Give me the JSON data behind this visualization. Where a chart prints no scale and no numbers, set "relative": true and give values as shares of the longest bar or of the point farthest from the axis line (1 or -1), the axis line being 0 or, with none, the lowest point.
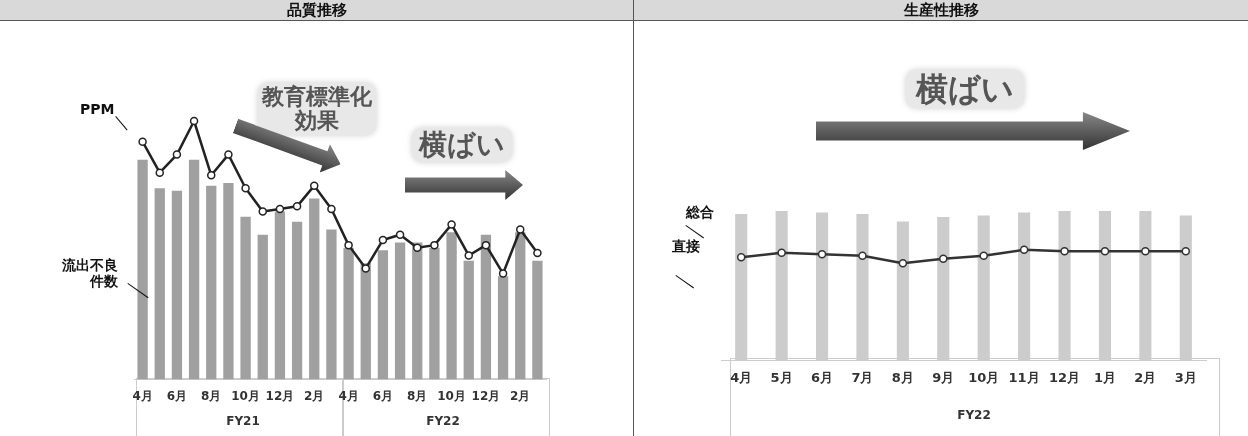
{
  "chart_data": [
    {
      "type": "bar",
      "title": "品質推移",
      "relative": true,
      "legend": false,
      "grid": false,
      "marker": "circle",
      "categories": [
        "4月",
        null,
        "6月",
        null,
        "8月",
        null,
        "10月",
        null,
        "12月",
        null,
        "2月",
        null,
        "4月",
        null,
        "6月",
        null,
        "8月",
        null,
        "10月",
        null,
        "12月",
        null,
        "2月",
        null
      ],
      "series": [
        {
          "name": "流出不良件数",
          "color": "#a0a0a0",
          "values": [
            0.85,
            0.74,
            0.73,
            0.85,
            0.75,
            0.76,
            0.63,
            0.56,
            0.65,
            0.61,
            0.7,
            0.58,
            0.51,
            0.45,
            0.5,
            0.53,
            0.53,
            0.51,
            0.57,
            0.46,
            0.56,
            0.4,
            0.57,
            0.46
          ]
        },
        {
          "name": "PPM",
          "type": "line",
          "color": "#222222",
          "values": [
            0.92,
            0.8,
            0.87,
            1,
            0.79,
            0.87,
            0.74,
            0.65,
            0.66,
            0.67,
            0.75,
            0.66,
            0.52,
            0.43,
            0.54,
            0.56,
            0.51,
            0.52,
            0.6,
            0.48,
            0.52,
            0.41,
            0.58,
            0.49
          ]
        }
      ],
      "annotations": [
        "教育標準化効果",
        "横ばい",
        "FY21",
        "FY22"
      ]
    },
    {
      "type": "bar",
      "title": "生産性推移",
      "relative": true,
      "legend": false,
      "grid": false,
      "marker": "circle",
      "categories": [
        "4月",
        "5月",
        "6月",
        "7月",
        "8月",
        "9月",
        "10月",
        "11月",
        "12月",
        "1月",
        "2月",
        "3月"
      ],
      "series": [
        {
          "name": "総合",
          "color": "#cccccc",
          "values": [
            0.98,
            1,
            0.99,
            0.98,
            0.93,
            0.96,
            0.97,
            0.99,
            1,
            1,
            1,
            0.97
          ]
        },
        {
          "name": "直接",
          "type": "line",
          "color": "#333333",
          "values": [
            0.69,
            0.72,
            0.71,
            0.7,
            0.65,
            0.68,
            0.7,
            0.74,
            0.73,
            0.73,
            0.73,
            0.73
          ]
        }
      ],
      "annotations": [
        "横ばい",
        "FY22"
      ]
    }
  ]
}
